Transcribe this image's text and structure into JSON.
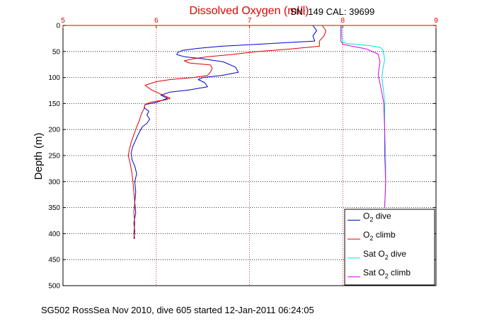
{
  "chart_data": {
    "type": "line",
    "title": "Dissolved Oxygen (ml/l)",
    "calibration_text": "SN: 149  CAL: 39699",
    "ylabel": "Depth (m)",
    "footer": "SG502 RossSea Nov 2010, dive 605 started 12-Jan-2011 06:24:05",
    "xlim": [
      5,
      9
    ],
    "ylim": [
      0,
      500
    ],
    "y_reversed": true,
    "x_ticks": [
      "5",
      "6",
      "7",
      "8",
      "9"
    ],
    "y_ticks": [
      "0",
      "50",
      "100",
      "150",
      "200",
      "250",
      "300",
      "350",
      "400",
      "450",
      "500"
    ],
    "grid": true,
    "legend_position": "bottom-right",
    "series": [
      {
        "name": "O2 dive",
        "legend": {
          "pre": "O",
          "sub": "2",
          "post": " dive"
        },
        "color": "#0000cc",
        "points": [
          [
            7.68,
            0
          ],
          [
            7.72,
            10
          ],
          [
            7.68,
            20
          ],
          [
            7.7,
            30
          ],
          [
            7.4,
            33
          ],
          [
            7.0,
            37
          ],
          [
            6.7,
            40
          ],
          [
            6.45,
            44
          ],
          [
            6.28,
            48
          ],
          [
            6.23,
            52
          ],
          [
            6.22,
            56
          ],
          [
            6.3,
            60
          ],
          [
            6.5,
            64
          ],
          [
            6.72,
            70
          ],
          [
            6.85,
            80
          ],
          [
            6.88,
            90
          ],
          [
            6.7,
            96
          ],
          [
            6.5,
            100
          ],
          [
            6.45,
            104
          ],
          [
            6.52,
            110
          ],
          [
            6.55,
            118
          ],
          [
            6.35,
            124
          ],
          [
            6.15,
            128
          ],
          [
            6.05,
            134
          ],
          [
            6.12,
            140
          ],
          [
            6.0,
            148
          ],
          [
            5.88,
            152
          ],
          [
            5.87,
            158
          ],
          [
            5.92,
            165
          ],
          [
            5.9,
            172
          ],
          [
            5.93,
            180
          ],
          [
            5.9,
            188
          ],
          [
            5.85,
            195
          ],
          [
            5.82,
            205
          ],
          [
            5.8,
            212
          ],
          [
            5.78,
            220
          ],
          [
            5.75,
            232
          ],
          [
            5.73,
            245
          ],
          [
            5.74,
            258
          ],
          [
            5.77,
            270
          ],
          [
            5.79,
            285
          ],
          [
            5.77,
            300
          ],
          [
            5.78,
            320
          ],
          [
            5.77,
            340
          ],
          [
            5.78,
            360
          ],
          [
            5.76,
            380
          ],
          [
            5.77,
            395
          ],
          [
            5.76,
            410
          ]
        ]
      },
      {
        "name": "O2 climb",
        "legend": {
          "pre": "O",
          "sub": "2",
          "post": " climb"
        },
        "color": "#e00000",
        "points": [
          [
            5.77,
            410
          ],
          [
            5.76,
            400
          ],
          [
            5.77,
            380
          ],
          [
            5.76,
            360
          ],
          [
            5.77,
            340
          ],
          [
            5.76,
            320
          ],
          [
            5.75,
            300
          ],
          [
            5.74,
            285
          ],
          [
            5.72,
            265
          ],
          [
            5.7,
            250
          ],
          [
            5.71,
            240
          ],
          [
            5.73,
            225
          ],
          [
            5.76,
            210
          ],
          [
            5.79,
            195
          ],
          [
            5.82,
            182
          ],
          [
            5.84,
            170
          ],
          [
            5.87,
            160
          ],
          [
            5.88,
            152
          ],
          [
            5.95,
            147
          ],
          [
            6.1,
            143
          ],
          [
            6.15,
            140
          ],
          [
            6.05,
            132
          ],
          [
            5.95,
            124
          ],
          [
            5.88,
            115
          ],
          [
            6.0,
            108
          ],
          [
            6.15,
            104
          ],
          [
            6.4,
            100
          ],
          [
            6.55,
            96
          ],
          [
            6.58,
            90
          ],
          [
            6.6,
            82
          ],
          [
            6.58,
            76
          ],
          [
            6.35,
            72
          ],
          [
            6.3,
            68
          ],
          [
            6.4,
            64
          ],
          [
            6.55,
            60
          ],
          [
            6.8,
            56
          ],
          [
            7.1,
            50
          ],
          [
            7.45,
            45
          ],
          [
            7.75,
            40
          ],
          [
            7.75,
            30
          ],
          [
            7.8,
            20
          ],
          [
            7.82,
            10
          ],
          [
            7.78,
            0
          ]
        ]
      },
      {
        "name": "Sat O2 dive",
        "legend": {
          "pre": "Sat O",
          "sub": "2",
          "post": " dive"
        },
        "color": "#00e0e0",
        "points": [
          [
            7.99,
            0
          ],
          [
            7.99,
            20
          ],
          [
            8.0,
            32
          ],
          [
            8.05,
            35
          ],
          [
            8.2,
            37
          ],
          [
            8.3,
            39
          ],
          [
            8.4,
            42
          ],
          [
            8.43,
            47
          ],
          [
            8.44,
            55
          ],
          [
            8.45,
            65
          ],
          [
            8.44,
            75
          ],
          [
            8.43,
            85
          ],
          [
            8.42,
            100
          ],
          [
            8.43,
            115
          ],
          [
            8.44,
            130
          ],
          [
            8.45,
            150
          ],
          [
            8.45,
            200
          ],
          [
            8.46,
            250
          ],
          [
            8.46,
            300
          ],
          [
            8.45,
            350
          ]
        ]
      },
      {
        "name": "Sat O2 climb",
        "legend": {
          "pre": "Sat O",
          "sub": "2",
          "post": " climb"
        },
        "color": "#e000e0",
        "points": [
          [
            8.45,
            350
          ],
          [
            8.46,
            300
          ],
          [
            8.45,
            250
          ],
          [
            8.45,
            200
          ],
          [
            8.44,
            150
          ],
          [
            8.42,
            130
          ],
          [
            8.4,
            112
          ],
          [
            8.38,
            95
          ],
          [
            8.39,
            82
          ],
          [
            8.4,
            70
          ],
          [
            8.38,
            55
          ],
          [
            8.25,
            45
          ],
          [
            8.1,
            40
          ],
          [
            8.0,
            36
          ],
          [
            7.98,
            30
          ],
          [
            7.98,
            15
          ],
          [
            7.98,
            0
          ]
        ]
      }
    ]
  }
}
